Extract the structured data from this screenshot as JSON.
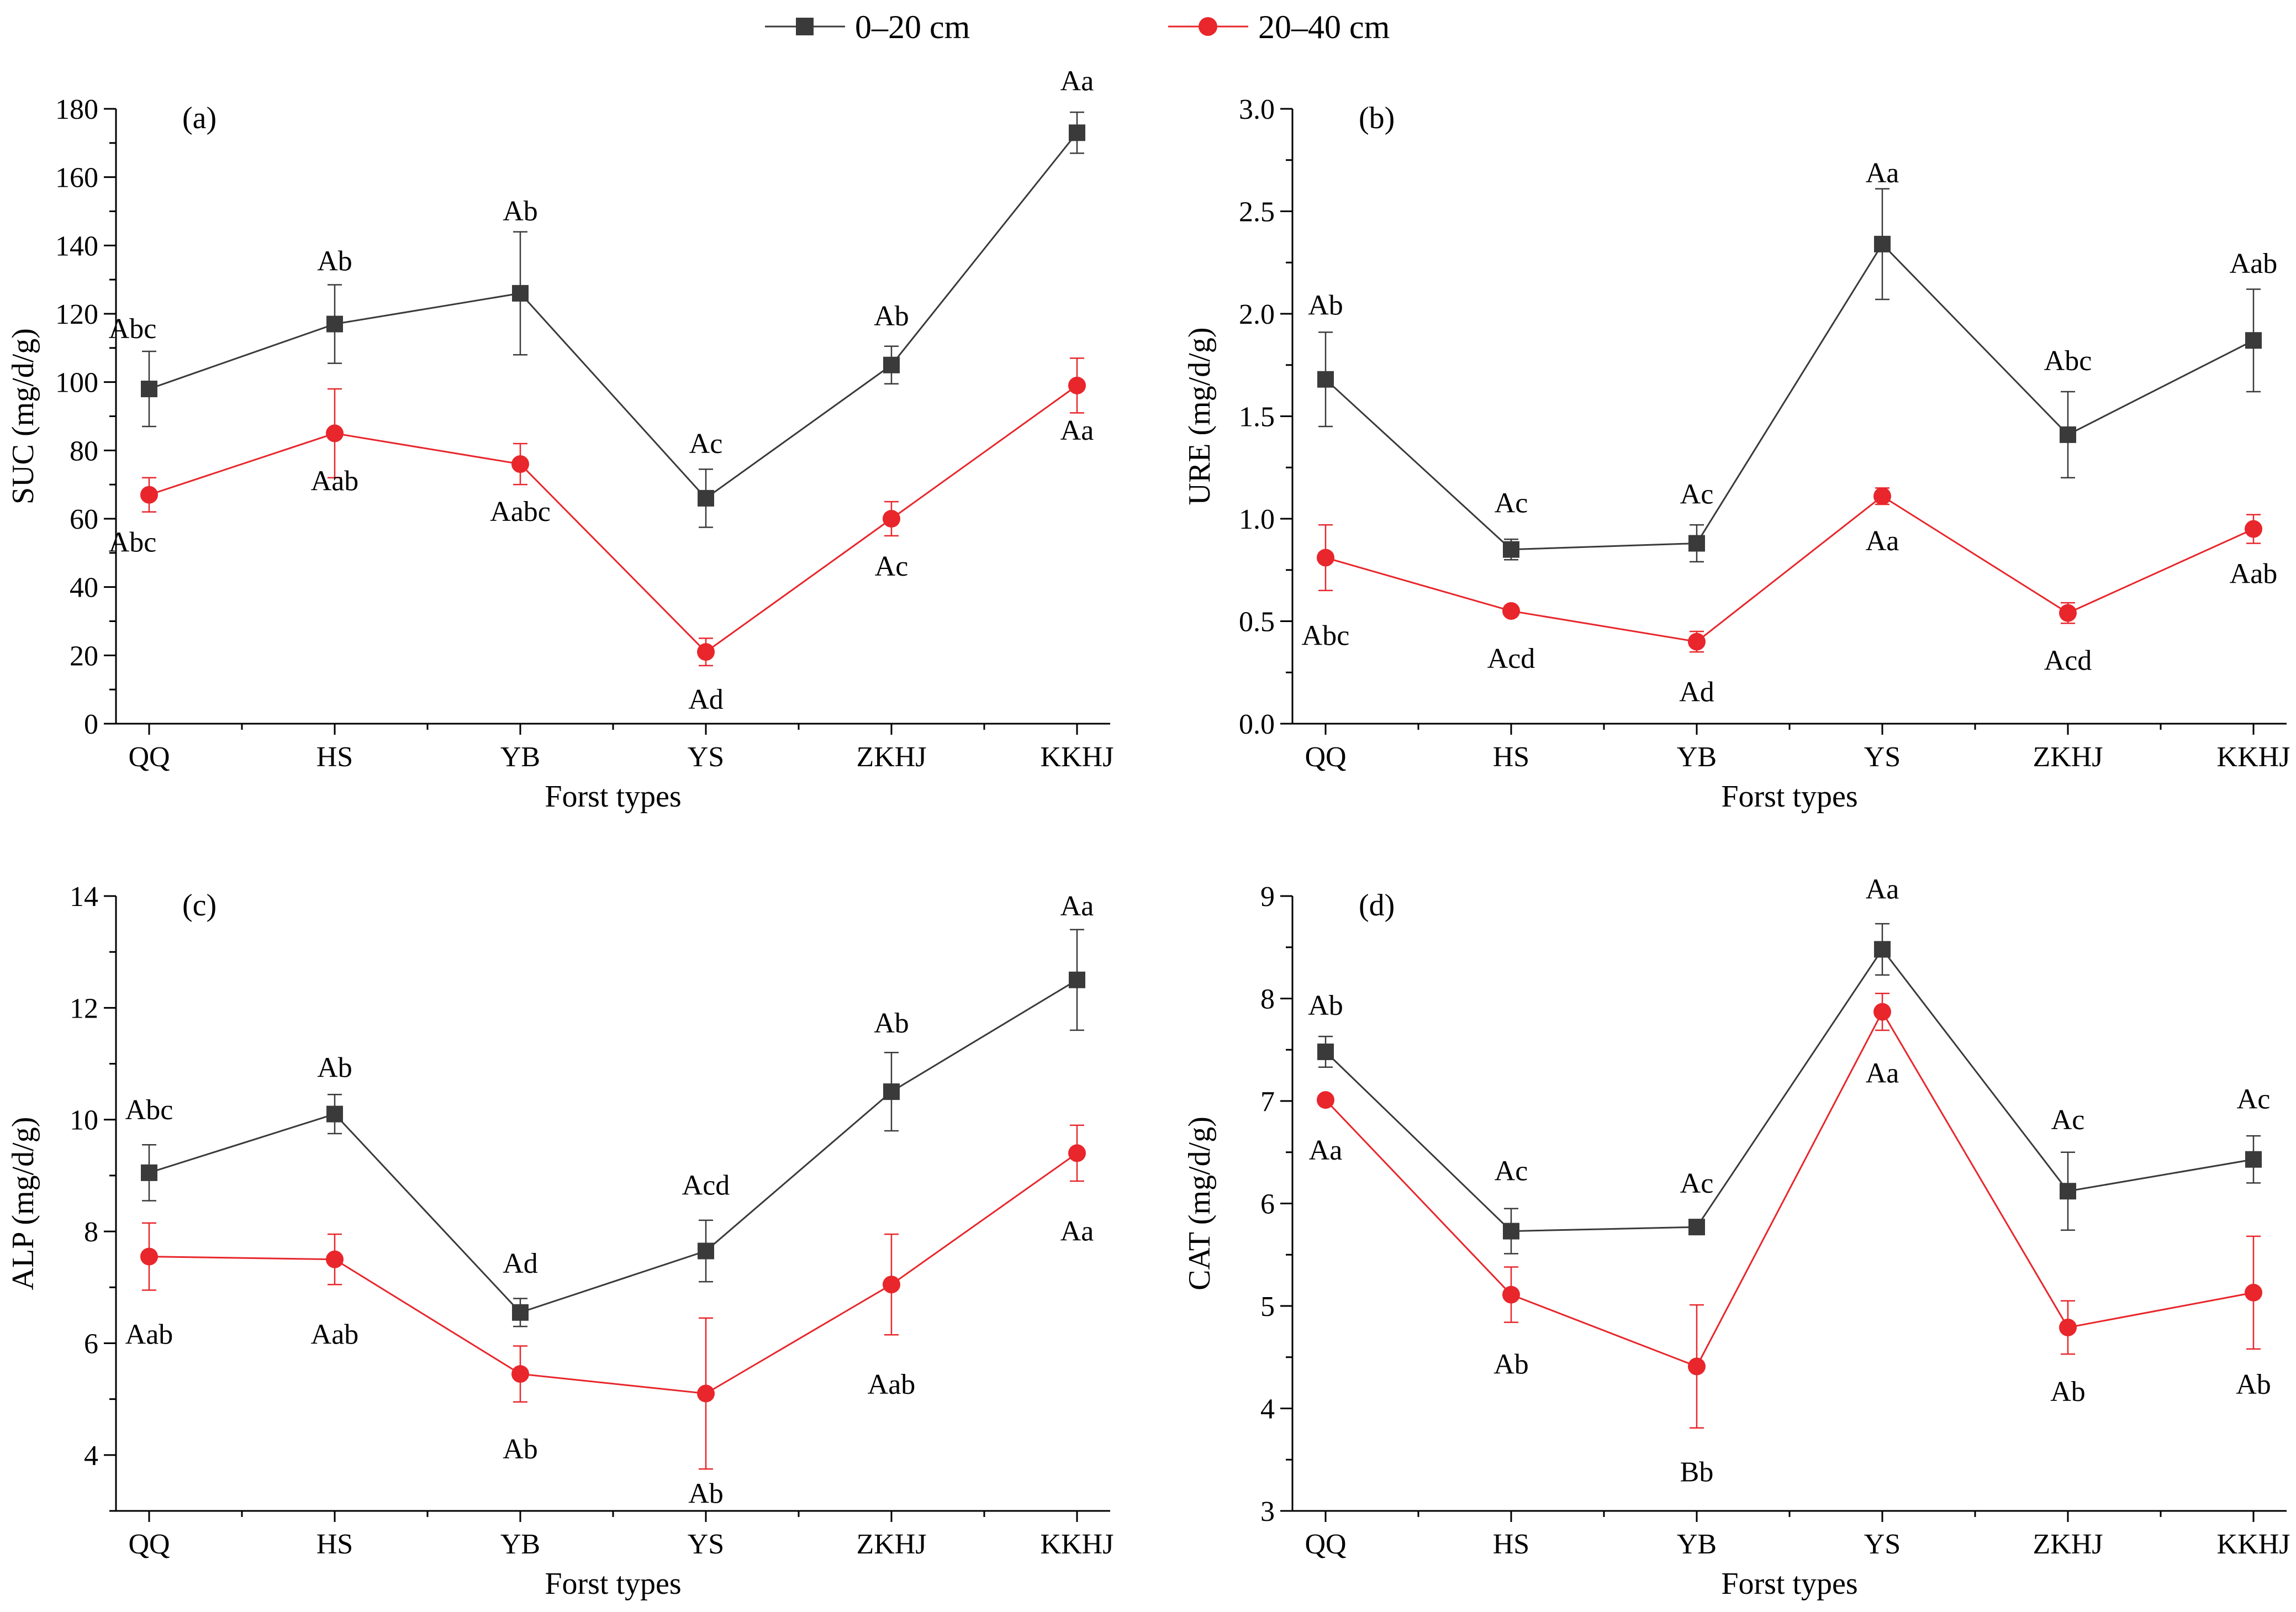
{
  "legend": {
    "series_a_label": "0–20 cm",
    "series_b_label": "20–40 cm"
  },
  "colors": {
    "series_a": "#3a3a3a",
    "series_b": "#e8262b"
  },
  "chart_data": [
    {
      "type": "line",
      "panel": "(a)",
      "xlabel": "Forst types",
      "ylabel": "SUC (mg/d/g)",
      "categories": [
        "QQ",
        "HS",
        "YB",
        "YS",
        "ZKHJ",
        "KKHJ"
      ],
      "ylim": [
        0,
        180
      ],
      "yticks": [
        "0",
        "20",
        "40",
        "60",
        "80",
        "100",
        "120",
        "140",
        "160",
        "180"
      ],
      "series": [
        {
          "name": "0–20 cm",
          "values": [
            98,
            117,
            126,
            66,
            105,
            173
          ],
          "errors": [
            11,
            11.5,
            18,
            8.5,
            5.5,
            6
          ],
          "labels": [
            "Abc",
            "Ab",
            "Ab",
            "Ac",
            "Ab",
            "Aa"
          ]
        },
        {
          "name": "20–40 cm",
          "values": [
            67,
            85,
            76,
            21,
            60,
            99
          ],
          "errors": [
            5,
            13,
            6,
            4,
            5,
            8
          ],
          "labels": [
            "Abc",
            "Aab",
            "Aabc",
            "Ad",
            "Ac",
            "Aa"
          ]
        }
      ]
    },
    {
      "type": "line",
      "panel": "(b)",
      "xlabel": "Forst types",
      "ylabel": "URE (mg/d/g)",
      "categories": [
        "QQ",
        "HS",
        "YB",
        "YS",
        "ZKHJ",
        "KKHJ"
      ],
      "ylim": [
        0,
        3.0
      ],
      "yticks": [
        "0.0",
        "0.5",
        "1.0",
        "1.5",
        "2.0",
        "2.5",
        "3.0"
      ],
      "series": [
        {
          "name": "0–20 cm",
          "values": [
            1.68,
            0.85,
            0.88,
            2.34,
            1.41,
            1.87
          ],
          "errors": [
            0.23,
            0.05,
            0.09,
            0.27,
            0.21,
            0.25
          ],
          "labels": [
            "Ab",
            "Ac",
            "Ac",
            "Aa",
            "Abc",
            "Aab"
          ]
        },
        {
          "name": "20–40 cm",
          "values": [
            0.81,
            0.55,
            0.4,
            1.11,
            0.54,
            0.95
          ],
          "errors": [
            0.16,
            0.02,
            0.05,
            0.04,
            0.05,
            0.07
          ],
          "labels": [
            "Abc",
            "Acd",
            "Ad",
            "Aa",
            "Acd",
            "Aab"
          ]
        }
      ]
    },
    {
      "type": "line",
      "panel": "(c)",
      "xlabel": "Forst types",
      "ylabel": "ALP (mg/d/g)",
      "categories": [
        "QQ",
        "HS",
        "YB",
        "YS",
        "ZKHJ",
        "KKHJ"
      ],
      "ylim": [
        3,
        14
      ],
      "yticks": [
        "4",
        "6",
        "8",
        "10",
        "12",
        "14"
      ],
      "ytick_values": [
        4,
        6,
        8,
        10,
        12,
        14
      ],
      "series": [
        {
          "name": "0–20 cm",
          "values": [
            9.05,
            10.1,
            6.55,
            7.65,
            10.5,
            12.5
          ],
          "errors": [
            0.5,
            0.35,
            0.25,
            0.55,
            0.7,
            0.9
          ],
          "labels": [
            "Abc",
            "Ab",
            "Ad",
            "Acd",
            "Ab",
            "Aa"
          ]
        },
        {
          "name": "20–40 cm",
          "values": [
            7.55,
            7.5,
            5.45,
            5.1,
            7.05,
            9.4
          ],
          "errors": [
            0.6,
            0.45,
            0.5,
            1.35,
            0.9,
            0.5
          ],
          "labels": [
            "Aab",
            "Aab",
            "Ab",
            "Ab",
            "Aab",
            "Aa"
          ]
        }
      ]
    },
    {
      "type": "line",
      "panel": "(d)",
      "xlabel": "Forst types",
      "ylabel": "CAT (mg/d/g)",
      "categories": [
        "QQ",
        "HS",
        "YB",
        "YS",
        "ZKHJ",
        "KKHJ"
      ],
      "ylim": [
        3,
        9
      ],
      "yticks": [
        "3",
        "4",
        "5",
        "6",
        "7",
        "8",
        "9"
      ],
      "series": [
        {
          "name": "0–20 cm",
          "values": [
            7.48,
            5.73,
            5.77,
            8.48,
            6.12,
            6.43
          ],
          "errors": [
            0.15,
            0.22,
            0.03,
            0.25,
            0.38,
            0.23
          ],
          "labels": [
            "Ab",
            "Ac",
            "Ac",
            "Aa",
            "Ac",
            "Ac"
          ]
        },
        {
          "name": "20–40 cm",
          "values": [
            7.01,
            5.11,
            4.41,
            7.87,
            4.79,
            5.13
          ],
          "errors": [
            0.04,
            0.27,
            0.6,
            0.18,
            0.26,
            0.55
          ],
          "labels": [
            "Aa",
            "Ab",
            "Bb",
            "Aa",
            "Ab",
            "Ab"
          ]
        }
      ]
    }
  ]
}
